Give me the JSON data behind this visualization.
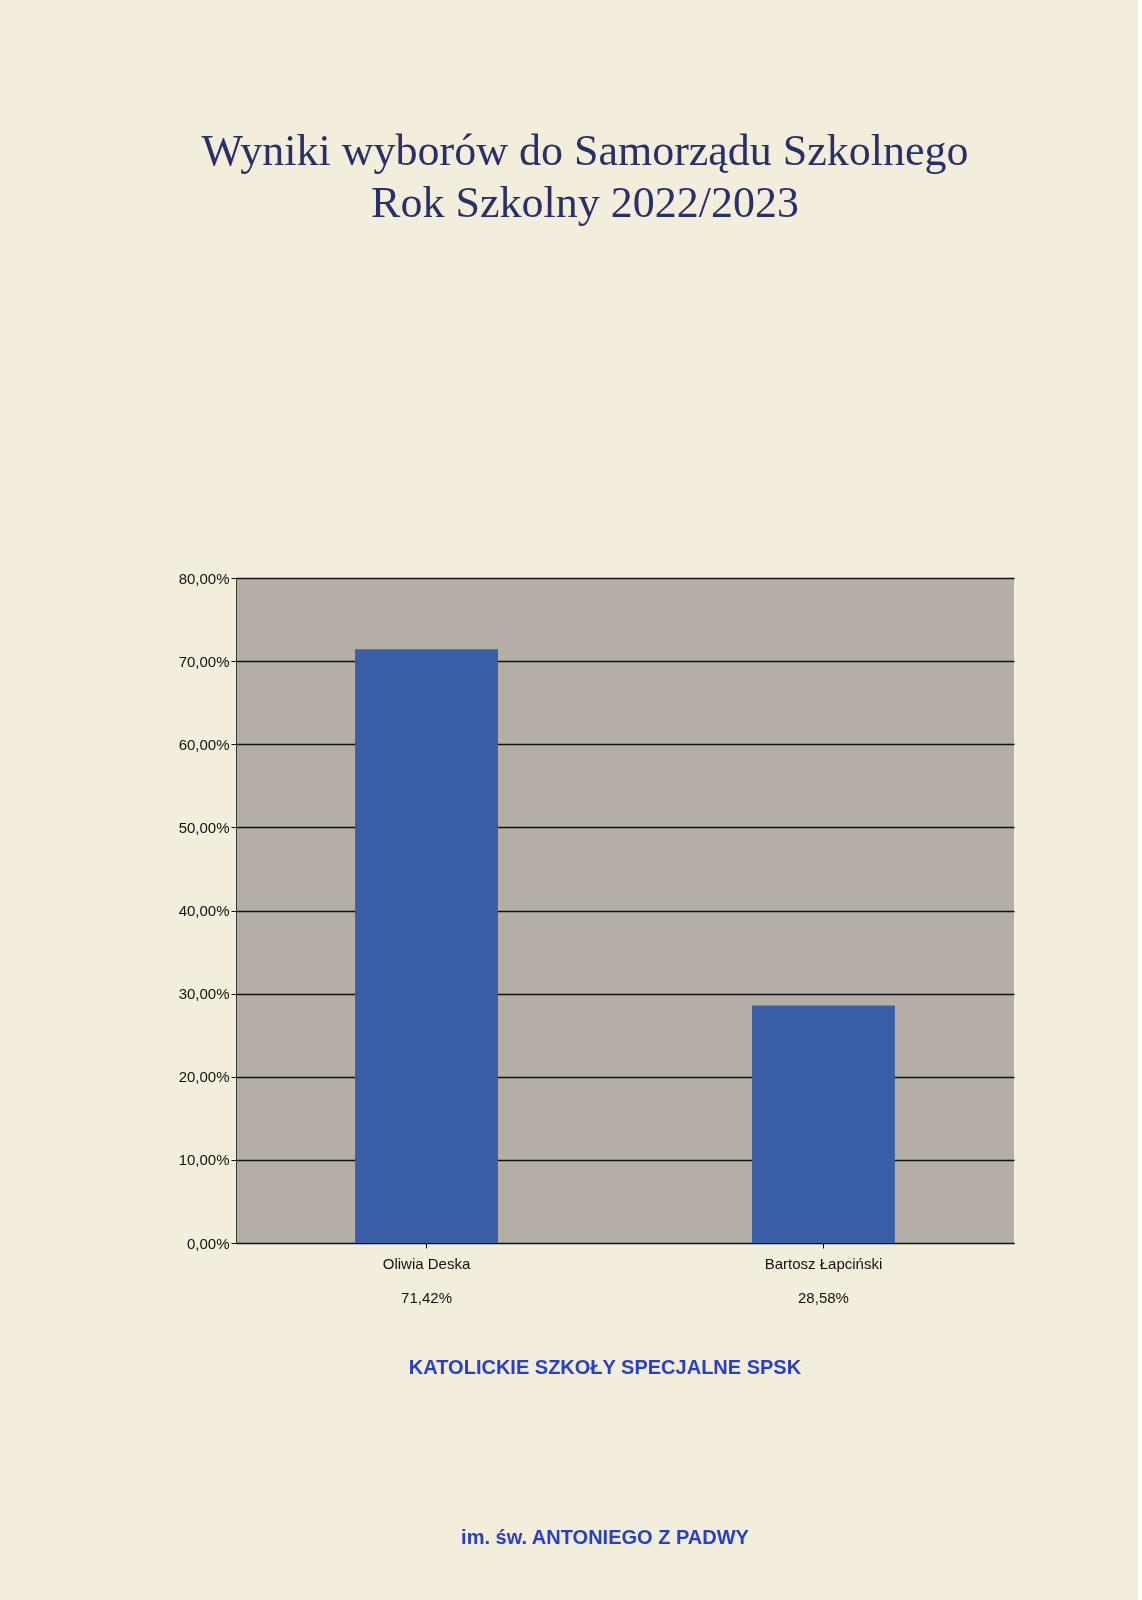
{
  "chart_data": {
    "type": "bar",
    "title": "Wyniki wyborów do Samorządu Szkolnego",
    "subtitle": "Rok Szkolny 2022/2023",
    "categories": [
      "Oliwia Deska",
      "Bartosz Łapciński"
    ],
    "values": [
      71.42,
      28.58
    ],
    "color": "#3a5fa8",
    "value_labels": [
      "71,42%",
      "28,58%"
    ],
    "ylim": [
      0,
      80
    ],
    "yticks": [
      {
        "value": 0,
        "label": "0,00%"
      },
      {
        "value": 10,
        "label": "10,00%"
      },
      {
        "value": 20,
        "label": "20,00%"
      },
      {
        "value": 30,
        "label": "30,00%"
      },
      {
        "value": 40,
        "label": "40,00%"
      },
      {
        "value": 50,
        "label": "50,00%"
      },
      {
        "value": 60,
        "label": "60,00%"
      },
      {
        "value": 70,
        "label": "70,00%"
      },
      {
        "value": 80,
        "label": "80,00%"
      }
    ],
    "grid": "y",
    "annotations": [
      "KATOLICKIE SZKOŁY SPECJALNE SPSK",
      "im. św. ANTONIEGO Z PADWY"
    ]
  }
}
